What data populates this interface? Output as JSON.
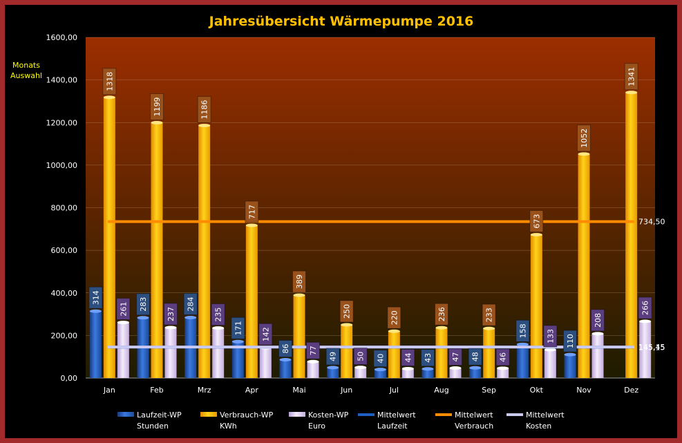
{
  "colors": {
    "frame": "#a32a2a",
    "background": "#000000",
    "title": "#ffc000",
    "plot_top": "#9c2e00",
    "plot_bottom": "#1e1c00",
    "laufzeit": "#2f66c8",
    "verbrauch": "#ffc000",
    "kosten": "#e6d6f2",
    "mittel_laufzeit": "#1f5fc0",
    "mittel_verbrauch": "#ff8c00",
    "mittel_kosten": "#c9c9f2",
    "label_laufzeit_bg": "#2c4f80",
    "label_verbrauch_bg": "#99521c",
    "label_kosten_bg": "#5a3e80",
    "monats_text": "#ffff00"
  },
  "monats_auswahl": [
    "Monats",
    "Auswahl"
  ],
  "chart_data": {
    "type": "bar",
    "title": "Jahresübersicht Wärmepumpe  2016",
    "categories": [
      "Jan",
      "Feb",
      "Mrz",
      "Apr",
      "Mai",
      "Jun",
      "Jul",
      "Aug",
      "Sep",
      "Okt",
      "Nov",
      "Dez"
    ],
    "ylim": [
      0,
      1600
    ],
    "ytick_labels": [
      "0,00",
      "200,00",
      "400,00",
      "600,00",
      "800,00",
      "1000,00",
      "1200,00",
      "1400,00",
      "1600,00"
    ],
    "grid": true,
    "legend_position": "bottom",
    "series": [
      {
        "name": "Laufzeit-WP",
        "sublabel": "Stunden",
        "values": [
          314,
          283,
          284,
          171,
          86,
          49,
          40,
          43,
          48,
          158,
          110,
          null
        ]
      },
      {
        "name": "Verbrauch-WP",
        "sublabel": "KWh",
        "values": [
          1318,
          1199,
          1186,
          717,
          389,
          250,
          220,
          236,
          233,
          673,
          1052,
          1341
        ]
      },
      {
        "name": "Kosten-WP",
        "sublabel": "Euro",
        "values": [
          261,
          237,
          235,
          142,
          77,
          50,
          44,
          47,
          46,
          133,
          208,
          266
        ]
      }
    ],
    "averages": [
      {
        "name": "Mittelwert",
        "sublabel": "Laufzeit",
        "value": 145.15,
        "label": "145,15"
      },
      {
        "name": "Mittelwert",
        "sublabel": "Verbrauch",
        "value": 734.5,
        "label": "734,50"
      },
      {
        "name": "Mittelwert",
        "sublabel": "Kosten",
        "value": 145.45,
        "label": "145,45"
      }
    ]
  }
}
